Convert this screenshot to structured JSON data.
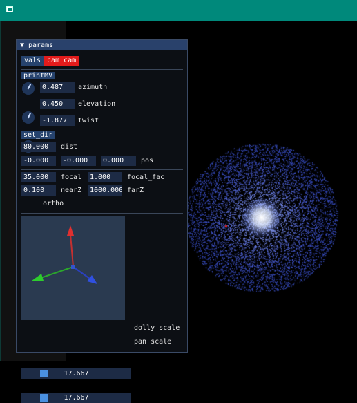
{
  "window": {
    "icon": "window-app-icon"
  },
  "panel": {
    "title": "params",
    "tabs": {
      "vals": "vals",
      "cam": "cam_cam"
    },
    "print_mv": "printMV",
    "azimuth": {
      "value": "0.487",
      "label": "azimuth",
      "fraction": 0.487
    },
    "elevation": {
      "value": "0.450",
      "label": "elevation",
      "fraction": 0.45
    },
    "twist": {
      "value": "-1.877",
      "label": "twist",
      "fraction": -1.877
    },
    "set_dir": "set_dir",
    "dist": {
      "value": "80.000",
      "label": "dist"
    },
    "pos": {
      "x": "-0.000",
      "y": "-0.000",
      "z": "0.000",
      "label": "pos"
    },
    "focal": {
      "value": "35.000",
      "label": "focal"
    },
    "focal_fac": {
      "value": "1.000",
      "label": "focal_fac"
    },
    "nearZ": {
      "value": "0.100",
      "label": "nearZ"
    },
    "farZ": {
      "value": "1000.000",
      "label": "farZ"
    },
    "ortho": {
      "label": "ortho",
      "on": false
    },
    "dolly": {
      "value": "17.667",
      "label": "dolly scale"
    },
    "pan": {
      "value": "17.667",
      "label": "pan scale"
    }
  },
  "colors": {
    "titlebar": "#00897b",
    "button": "#26436e",
    "active_tab": "#e31b1b",
    "field": "#1d2b45",
    "axis_x": "#2ecc2e",
    "axis_y": "#e03030",
    "axis_z": "#3050e0",
    "particles": "#3a5cff"
  }
}
